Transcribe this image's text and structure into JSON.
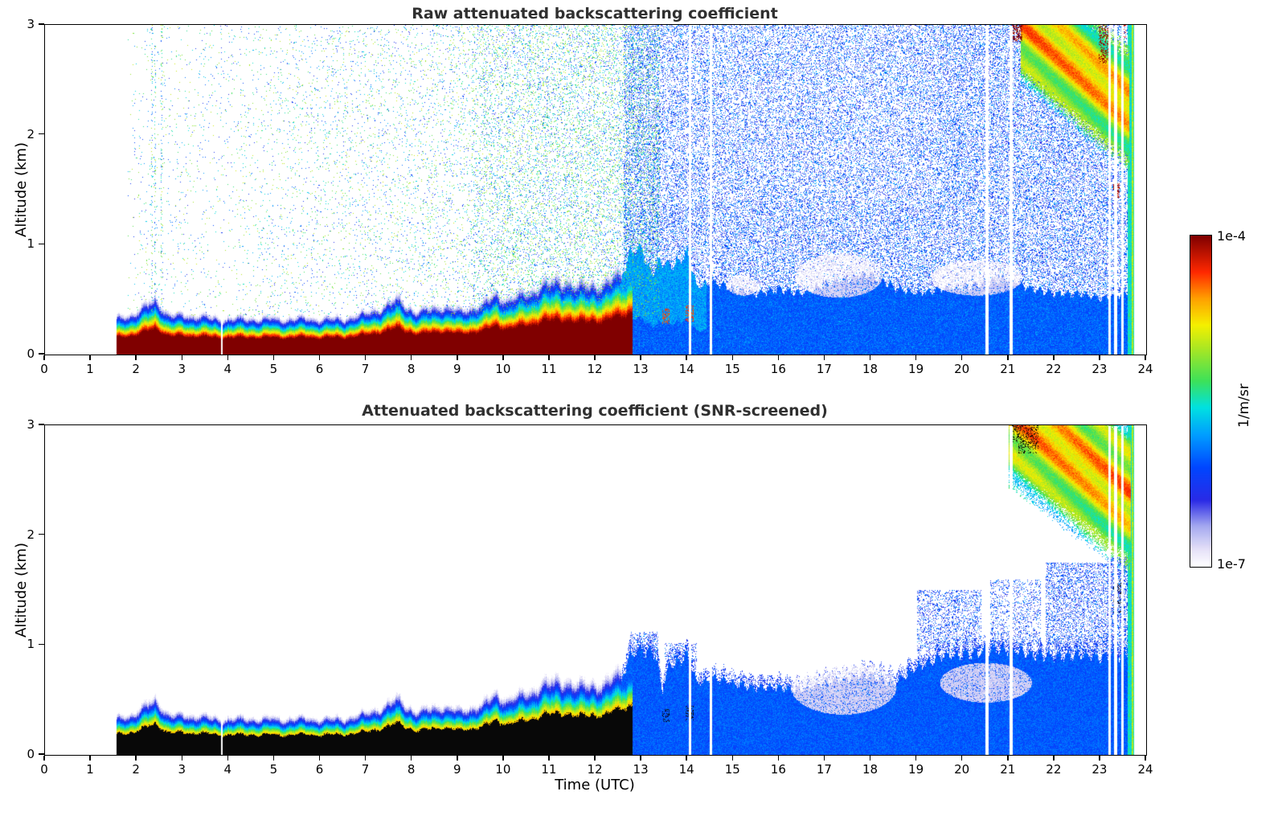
{
  "figure": {
    "xlabel": "Time (UTC)",
    "ylabel": "Altitude (km)",
    "background": "#ffffff"
  },
  "colorbar": {
    "label": "1/m/sr",
    "max": "1e-4",
    "min": "1e-7",
    "scale": "log",
    "colormap_stops": [
      [
        0.0,
        "#ffffff"
      ],
      [
        0.05,
        "#e6e2f8"
      ],
      [
        0.12,
        "#a6aaf0"
      ],
      [
        0.2,
        "#2a2ae6"
      ],
      [
        0.3,
        "#0046ff"
      ],
      [
        0.4,
        "#00a0ff"
      ],
      [
        0.48,
        "#00e1e1"
      ],
      [
        0.56,
        "#3ce15a"
      ],
      [
        0.65,
        "#a0e628"
      ],
      [
        0.73,
        "#f5f000"
      ],
      [
        0.81,
        "#ffa000"
      ],
      [
        0.89,
        "#ff2800"
      ],
      [
        1.0,
        "#800000"
      ]
    ]
  },
  "chart_data": [
    {
      "type": "heatmap",
      "title": "Raw attenuated backscattering coefficient",
      "xlabel": "",
      "ylabel": "Altitude (km)",
      "units": "1/m/sr",
      "xlim": [
        0,
        24
      ],
      "ylim": [
        0,
        3
      ],
      "value_range": [
        "1e-7",
        "1e-4"
      ],
      "xticks": [
        0,
        1,
        2,
        3,
        4,
        5,
        6,
        7,
        8,
        9,
        10,
        11,
        12,
        13,
        14,
        15,
        16,
        17,
        18,
        19,
        20,
        21,
        22,
        23,
        24
      ],
      "yticks": [
        0,
        1,
        2,
        3
      ],
      "data_start": 1.55,
      "data_end": 23.72,
      "screened": false,
      "boundary_layer_top_km": {
        "t": [
          1.55,
          2.0,
          2.4,
          2.7,
          3.2,
          3.8,
          4.5,
          5.5,
          6.5,
          7.0,
          7.7,
          8.1,
          8.6,
          9.0,
          9.5,
          9.85,
          10.1,
          10.5,
          10.9,
          11.3,
          11.6,
          11.9,
          12.2,
          12.5,
          12.8
        ],
        "h": [
          0.22,
          0.26,
          0.34,
          0.24,
          0.24,
          0.22,
          0.22,
          0.22,
          0.22,
          0.25,
          0.34,
          0.26,
          0.3,
          0.27,
          0.3,
          0.37,
          0.33,
          0.38,
          0.43,
          0.46,
          0.41,
          0.44,
          0.42,
          0.5,
          0.55
        ]
      },
      "aerosol_fill_top_km": {
        "t": [
          12.5,
          12.7,
          13.0,
          13.2,
          13.4,
          13.6,
          13.8,
          14.0,
          14.2,
          14.6,
          15.0,
          15.5,
          16.0,
          16.5,
          17.0,
          17.5,
          18.0,
          18.5,
          19.0,
          19.5,
          20.0,
          20.5,
          21.0,
          21.5,
          22.0,
          22.5,
          23.0,
          23.5,
          23.72
        ],
        "h": [
          0.55,
          0.92,
          0.97,
          0.72,
          0.86,
          0.8,
          0.86,
          0.92,
          0.62,
          0.66,
          0.6,
          0.56,
          0.6,
          0.56,
          0.64,
          0.7,
          0.74,
          0.62,
          0.56,
          0.6,
          0.62,
          0.66,
          0.7,
          0.6,
          0.56,
          0.56,
          0.52,
          0.56,
          0.56
        ]
      },
      "noise": {
        "sparse_region": [
          1.8,
          13.4,
          0.35,
          3.0
        ],
        "sparse_base": 0.015,
        "sparse_gain": 0.09,
        "green_band_start": 9.3,
        "early_columns": [
          2.25,
          2.55
        ],
        "dense_start": 12.6,
        "dense_prob": 0.3,
        "dense_prob_upper": 0.24
      },
      "pale_patches": [
        [
          17.3,
          0.72,
          0.95,
          0.2
        ],
        [
          20.3,
          0.7,
          1.0,
          0.16
        ],
        [
          15.2,
          0.63,
          0.35,
          0.09
        ]
      ],
      "cloud": {
        "t0": 21.25,
        "t1": 23.62,
        "a0": 3.05,
        "a1": 2.25,
        "hw": 0.46
      },
      "specks": [
        [
          22.95,
          23.2,
          2.65,
          3.0,
          0.3,
          0.95
        ],
        [
          21.05,
          21.3,
          2.85,
          3.0,
          0.5,
          0.97
        ],
        [
          23.28,
          23.42,
          1.42,
          1.56,
          0.5,
          0.93
        ],
        [
          23.5,
          23.56,
          2.88,
          3.0,
          0.3,
          0.9
        ],
        [
          13.45,
          13.6,
          0.28,
          0.42,
          0.45,
          0.85
        ],
        [
          13.95,
          14.12,
          0.3,
          0.45,
          0.45,
          0.85
        ]
      ],
      "edge_column": [
        23.58,
        23.72
      ],
      "gaps": [
        [
          3.85,
          0.04,
          0.6
        ],
        [
          14.05,
          0.06,
          3
        ],
        [
          14.5,
          0.05,
          3
        ],
        [
          20.52,
          0.06,
          3
        ],
        [
          21.05,
          0.06,
          3
        ],
        [
          23.2,
          0.05,
          3
        ],
        [
          23.33,
          0.07,
          3
        ],
        [
          23.48,
          0.05,
          3
        ]
      ]
    },
    {
      "type": "heatmap",
      "title": "Attenuated backscattering coefficient (SNR-screened)",
      "xlabel": "Time (UTC)",
      "ylabel": "Altitude (km)",
      "units": "1/m/sr",
      "xlim": [
        0,
        24
      ],
      "ylim": [
        0,
        3
      ],
      "value_range": [
        "1e-7",
        "1e-4"
      ],
      "xticks": [
        0,
        1,
        2,
        3,
        4,
        5,
        6,
        7,
        8,
        9,
        10,
        11,
        12,
        13,
        14,
        15,
        16,
        17,
        18,
        19,
        20,
        21,
        22,
        23,
        24
      ],
      "yticks": [
        0,
        1,
        2,
        3
      ],
      "data_start": 1.55,
      "data_end": 23.72,
      "screened": true,
      "boundary_layer_top_km": {
        "t": [
          1.55,
          2.0,
          2.4,
          2.7,
          3.2,
          3.8,
          4.5,
          5.5,
          6.5,
          7.0,
          7.7,
          8.1,
          8.6,
          9.0,
          9.5,
          9.85,
          10.1,
          10.5,
          10.9,
          11.3,
          11.6,
          11.9,
          12.2,
          12.5,
          12.8
        ],
        "h": [
          0.22,
          0.26,
          0.34,
          0.24,
          0.24,
          0.22,
          0.22,
          0.22,
          0.22,
          0.25,
          0.34,
          0.26,
          0.3,
          0.27,
          0.3,
          0.37,
          0.33,
          0.38,
          0.43,
          0.46,
          0.41,
          0.44,
          0.42,
          0.5,
          0.55
        ]
      },
      "aerosol_fill_top_km": {
        "t": [
          12.5,
          12.7,
          13.0,
          13.3,
          13.45,
          13.6,
          14.0,
          14.2,
          14.6,
          15.0,
          15.5,
          16.0,
          16.5,
          17.0,
          17.5,
          18.0,
          18.5,
          19.0,
          19.5,
          20.0,
          20.5,
          21.0,
          21.5,
          22.0,
          22.5,
          23.0,
          23.5,
          23.72
        ],
        "h": [
          0.55,
          0.9,
          0.95,
          0.92,
          0.6,
          0.82,
          0.9,
          0.66,
          0.7,
          0.66,
          0.62,
          0.62,
          0.6,
          0.66,
          0.7,
          0.74,
          0.66,
          0.8,
          0.9,
          0.92,
          0.95,
          0.98,
          0.92,
          0.9,
          0.92,
          0.9,
          0.92,
          0.92
        ]
      },
      "speckle_rects": [
        [
          19.0,
          20.4,
          0.95,
          1.5,
          0.25
        ],
        [
          20.6,
          21.7,
          1.0,
          1.6,
          0.2
        ],
        [
          21.8,
          23.55,
          0.95,
          1.75,
          0.3
        ],
        [
          12.75,
          13.35,
          0.9,
          1.12,
          0.3
        ],
        [
          13.5,
          14.2,
          0.85,
          1.02,
          0.25
        ],
        [
          23.15,
          23.6,
          0.9,
          1.8,
          0.45
        ]
      ],
      "pale_patches": [
        [
          17.4,
          0.62,
          1.15,
          0.25
        ],
        [
          20.5,
          0.66,
          1.0,
          0.18
        ]
      ],
      "cloud": {
        "t0": 21.0,
        "t1": 23.65,
        "a0": 3.15,
        "a1": 2.35,
        "hw": 0.55
      },
      "specks": [
        [
          21.2,
          21.65,
          2.75,
          3.0,
          0.25,
          -2
        ],
        [
          23.28,
          23.5,
          1.3,
          1.6,
          0.22,
          -2
        ],
        [
          21.02,
          21.2,
          2.85,
          3.0,
          0.3,
          -2
        ],
        [
          13.45,
          13.6,
          0.3,
          0.42,
          0.3,
          -2
        ],
        [
          13.95,
          14.12,
          0.32,
          0.45,
          0.3,
          -2
        ]
      ],
      "edge_column": [
        23.58,
        23.72
      ],
      "gaps": [
        [
          3.85,
          0.04,
          0.6
        ],
        [
          14.05,
          0.06,
          3
        ],
        [
          14.5,
          0.05,
          3
        ],
        [
          20.52,
          0.06,
          3
        ],
        [
          21.05,
          0.06,
          3
        ],
        [
          23.2,
          0.05,
          3
        ],
        [
          23.33,
          0.07,
          3
        ],
        [
          23.48,
          0.05,
          3
        ]
      ]
    }
  ]
}
